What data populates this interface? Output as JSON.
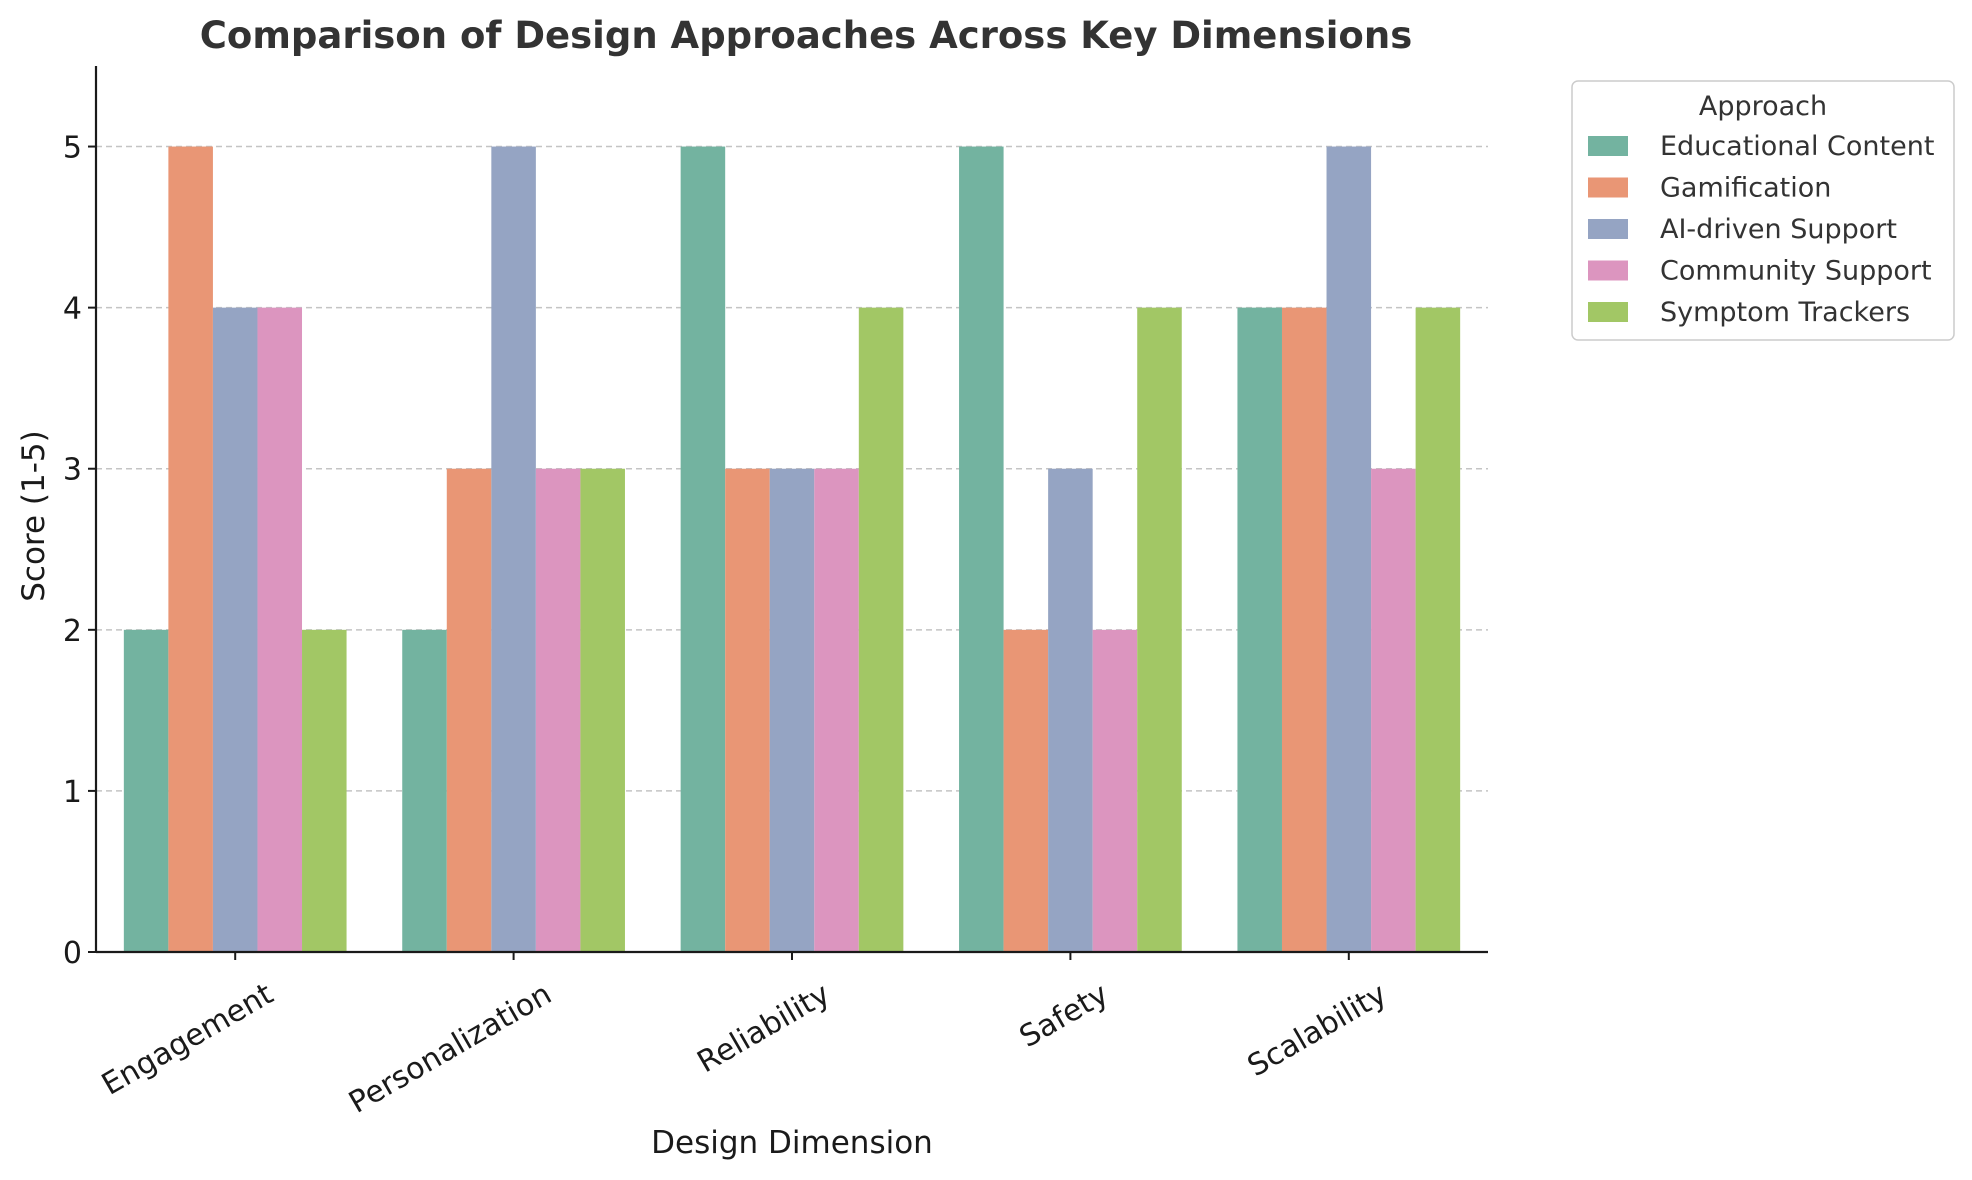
{
  "chart_data": {
    "type": "bar",
    "title": "Comparison of Design Approaches Across Key Dimensions",
    "xlabel": "Design Dimension",
    "ylabel": "Score (1-5)",
    "categories": [
      "Engagement",
      "Personalization",
      "Reliability",
      "Safety",
      "Scalability"
    ],
    "series": [
      {
        "name": "Educational Content",
        "color": "#73b3a0",
        "values": [
          2,
          2,
          5,
          5,
          4
        ]
      },
      {
        "name": "Gamification",
        "color": "#e99675",
        "values": [
          5,
          3,
          3,
          2,
          4
        ]
      },
      {
        "name": "AI-driven Support",
        "color": "#95a4c3",
        "values": [
          4,
          5,
          3,
          3,
          5
        ]
      },
      {
        "name": "Community Support",
        "color": "#dc95bf",
        "values": [
          4,
          3,
          3,
          2,
          3
        ]
      },
      {
        "name": "Symptom Trackers",
        "color": "#a2c765",
        "values": [
          2,
          3,
          4,
          4,
          4
        ]
      }
    ],
    "ylim": [
      0,
      5.5
    ],
    "yticks": [
      0,
      1,
      2,
      3,
      4,
      5
    ],
    "grid": "y-dashed",
    "legend": {
      "title": "Approach",
      "placement": "outside-top-right"
    }
  }
}
